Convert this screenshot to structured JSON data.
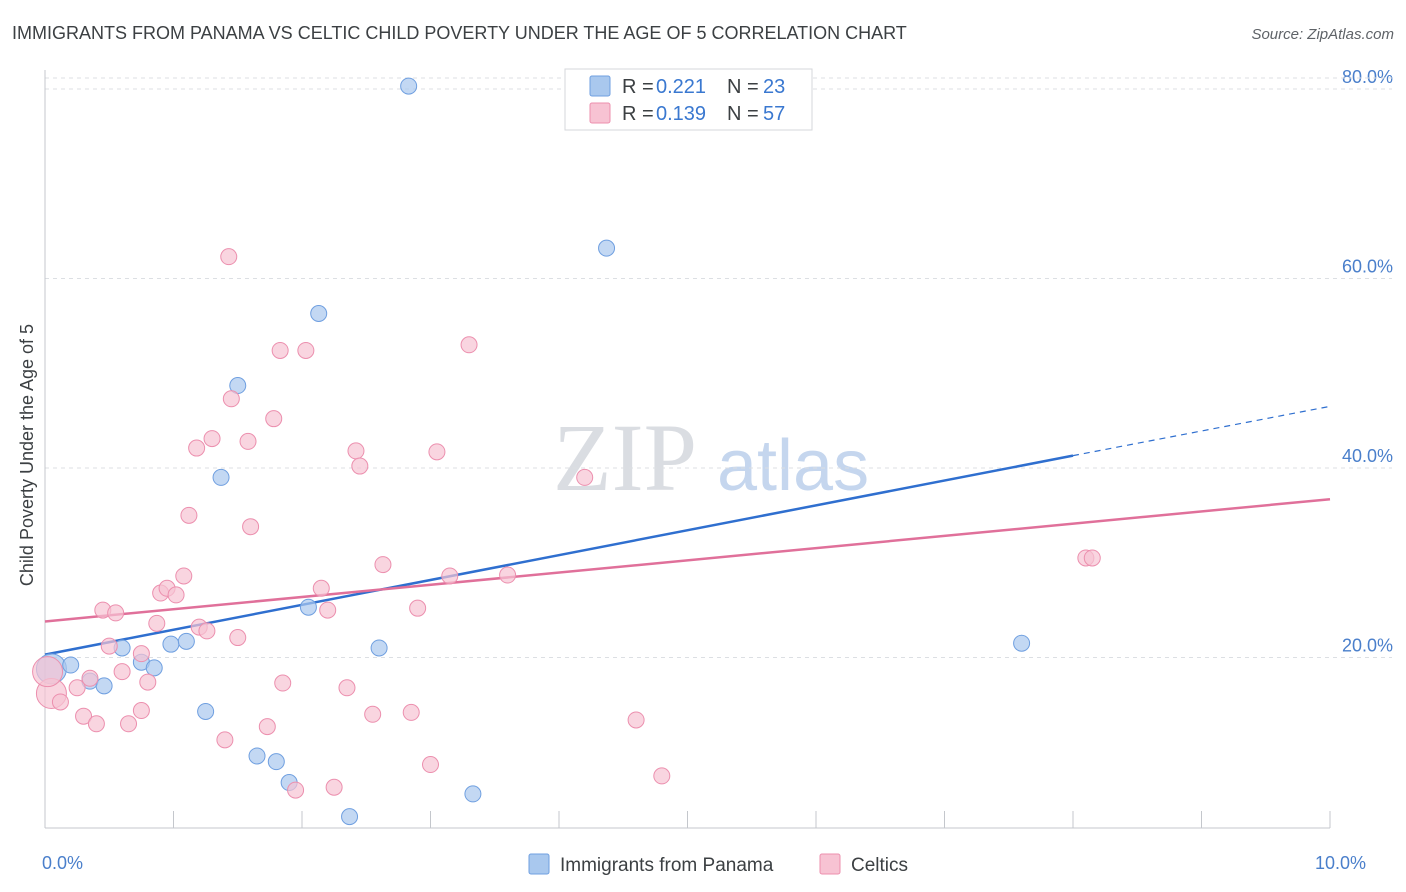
{
  "title": "IMMIGRANTS FROM PANAMA VS CELTIC CHILD POVERTY UNDER THE AGE OF 5 CORRELATION CHART",
  "source": "Source: ZipAtlas.com",
  "watermark": {
    "zip": "ZIP",
    "atlas": "atlas"
  },
  "legend_box": {
    "rows": [
      {
        "r_label": "R = ",
        "r_value": "0.221",
        "n_label": "N = ",
        "n_value": "23",
        "color": "#a9c8ee",
        "stroke": "#6f9fe0"
      },
      {
        "r_label": "R = ",
        "r_value": "0.139",
        "n_label": "N = ",
        "n_value": "57",
        "color": "#f7c3d3",
        "stroke": "#ec8fae"
      }
    ]
  },
  "bottom_legend": [
    {
      "label": "Immigrants from Panama",
      "color": "#a9c8ee",
      "stroke": "#6f9fe0"
    },
    {
      "label": "Celtics",
      "color": "#f7c3d3",
      "stroke": "#ec8fae"
    }
  ],
  "chart_data": {
    "type": "scatter",
    "title": "IMMIGRANTS FROM PANAMA VS CELTIC CHILD POVERTY UNDER THE AGE OF 5 CORRELATION CHART",
    "xlabel": "",
    "ylabel": "Child Poverty Under the Age of 5",
    "xlim": [
      0,
      10
    ],
    "ylim": [
      2,
      82
    ],
    "x_tick_labels": [
      {
        "value": 0,
        "label": "0.0%"
      },
      {
        "value": 10,
        "label": "10.0%"
      }
    ],
    "x_minor_ticks": [
      1,
      2,
      3,
      4,
      5,
      6,
      7,
      8,
      9,
      10
    ],
    "y_ticks": [
      {
        "value": 20,
        "label": "20.0%"
      },
      {
        "value": 40,
        "label": "40.0%"
      },
      {
        "value": 60,
        "label": "60.0%"
      },
      {
        "value": 80,
        "label": "80.0%"
      }
    ],
    "grid": true,
    "legend_position": "top-center",
    "series": [
      {
        "name": "Immigrants from Panama",
        "color": "#a9c8ee",
        "stroke": "#6f9fe0",
        "line_color": "#2f6fcf",
        "trend": {
          "x0": 0,
          "y0": 20.3,
          "x1": 8.0,
          "y1": 41.3,
          "dash_to_x": 10.0,
          "dash_to_y": 46.5
        },
        "points": [
          [
            0.05,
            18.8
          ],
          [
            0.2,
            19.2
          ],
          [
            0.35,
            17.5
          ],
          [
            0.46,
            17.0
          ],
          [
            0.6,
            21.0
          ],
          [
            0.75,
            19.5
          ],
          [
            0.85,
            18.9
          ],
          [
            0.98,
            21.4
          ],
          [
            1.1,
            21.7
          ],
          [
            1.25,
            14.3
          ],
          [
            1.37,
            39.0
          ],
          [
            1.5,
            48.7
          ],
          [
            1.65,
            9.6
          ],
          [
            1.8,
            9.0
          ],
          [
            1.9,
            6.8
          ],
          [
            2.05,
            25.3
          ],
          [
            2.13,
            56.3
          ],
          [
            2.37,
            3.2
          ],
          [
            2.6,
            21.0
          ],
          [
            2.83,
            80.3
          ],
          [
            3.33,
            5.6
          ],
          [
            4.37,
            63.2
          ],
          [
            7.6,
            21.5
          ]
        ]
      },
      {
        "name": "Celtics",
        "color": "#f7c3d3",
        "stroke": "#ec8fae",
        "line_color": "#e0709a",
        "trend": {
          "x0": 0,
          "y0": 23.8,
          "x1": 10.0,
          "y1": 36.7
        },
        "points": [
          [
            0.05,
            16.2
          ],
          [
            0.12,
            15.3
          ],
          [
            0.25,
            16.8
          ],
          [
            0.3,
            13.8
          ],
          [
            0.35,
            17.8
          ],
          [
            0.4,
            13.0
          ],
          [
            0.45,
            25.0
          ],
          [
            0.5,
            21.2
          ],
          [
            0.55,
            24.7
          ],
          [
            0.6,
            18.5
          ],
          [
            0.65,
            13.0
          ],
          [
            0.75,
            14.4
          ],
          [
            0.75,
            20.4
          ],
          [
            0.8,
            17.4
          ],
          [
            0.87,
            23.6
          ],
          [
            0.9,
            26.8
          ],
          [
            0.95,
            27.3
          ],
          [
            1.02,
            26.6
          ],
          [
            1.08,
            28.6
          ],
          [
            1.12,
            35.0
          ],
          [
            1.18,
            42.1
          ],
          [
            1.2,
            23.2
          ],
          [
            1.26,
            22.8
          ],
          [
            1.3,
            43.1
          ],
          [
            1.4,
            11.3
          ],
          [
            1.43,
            62.3
          ],
          [
            1.45,
            47.3
          ],
          [
            1.5,
            22.1
          ],
          [
            1.58,
            42.8
          ],
          [
            1.6,
            33.8
          ],
          [
            1.73,
            12.7
          ],
          [
            1.78,
            45.2
          ],
          [
            1.83,
            52.4
          ],
          [
            1.85,
            17.3
          ],
          [
            1.95,
            6.0
          ],
          [
            2.03,
            52.4
          ],
          [
            2.15,
            27.3
          ],
          [
            2.2,
            25.0
          ],
          [
            2.25,
            6.3
          ],
          [
            2.35,
            16.8
          ],
          [
            2.42,
            41.8
          ],
          [
            2.45,
            40.2
          ],
          [
            2.55,
            14.0
          ],
          [
            2.63,
            29.8
          ],
          [
            2.85,
            14.2
          ],
          [
            2.9,
            25.2
          ],
          [
            3.0,
            8.7
          ],
          [
            3.05,
            41.7
          ],
          [
            3.15,
            28.6
          ],
          [
            3.3,
            53.0
          ],
          [
            3.6,
            28.7
          ],
          [
            4.2,
            39.0
          ],
          [
            4.6,
            13.4
          ],
          [
            4.8,
            7.5
          ],
          [
            8.1,
            30.5
          ],
          [
            8.15,
            30.5
          ],
          [
            0.02,
            18.5
          ]
        ]
      }
    ]
  }
}
